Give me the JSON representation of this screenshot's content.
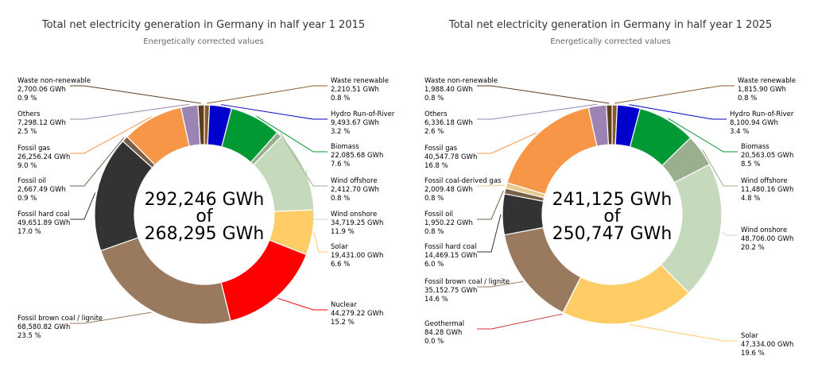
{
  "chart_data": [
    {
      "type": "pie",
      "title": "Total net electricity generation in Germany in half year 1 2015",
      "subtitle": "Energetically corrected values",
      "center_line1": "292,246 GWh",
      "center_line2": "of",
      "center_line3": "268,295 GWh",
      "slices": [
        {
          "name": "Waste renewable",
          "value": 2210.51,
          "value_text": "2,210.51 GWh",
          "percent": "0.8 %",
          "color": "#8b5a2b"
        },
        {
          "name": "Hydro Run-of-River",
          "value": 9493.67,
          "value_text": "9,493.67 GWh",
          "percent": "3.2 %",
          "color": "#0000cc"
        },
        {
          "name": "Biomass",
          "value": 22085.68,
          "value_text": "22,085.68 GWh",
          "percent": "7.6 %",
          "color": "#009933"
        },
        {
          "name": "Wind offshore",
          "value": 2412.7,
          "value_text": "2,412.70 GWh",
          "percent": "0.8 %",
          "color": "#9aaf8e"
        },
        {
          "name": "Wind onshore",
          "value": 34719.25,
          "value_text": "34,719.25 GWh",
          "percent": "11.9 %",
          "color": "#c5dabc"
        },
        {
          "name": "Solar",
          "value": 19431.0,
          "value_text": "19,431.00 GWh",
          "percent": "6.6 %",
          "color": "#ffcc66"
        },
        {
          "name": "Nuclear",
          "value": 44279.22,
          "value_text": "44,279.22 GWh",
          "percent": "15.2 %",
          "color": "#ff0000"
        },
        {
          "name": "Fossil brown coal / lignite",
          "value": 68580.82,
          "value_text": "68,580.82 GWh",
          "percent": "23.5 %",
          "color": "#997a5f"
        },
        {
          "name": "Fossil hard coal",
          "value": 49651.89,
          "value_text": "49,651.89 GWh",
          "percent": "17.0 %",
          "color": "#333333"
        },
        {
          "name": "Fossil oil",
          "value": 2667.49,
          "value_text": "2,667.49 GWh",
          "percent": "0.9 %",
          "color": "#7a6048"
        },
        {
          "name": "Fossil gas",
          "value": 26256.24,
          "value_text": "26,256.24 GWh",
          "percent": "9.0 %",
          "color": "#f79646"
        },
        {
          "name": "Others",
          "value": 7298.12,
          "value_text": "7,298.12 GWh",
          "percent": "2.5 %",
          "color": "#9b84b4"
        },
        {
          "name": "Waste non-renewable",
          "value": 2700.06,
          "value_text": "2,700.06 GWh",
          "percent": "0.9 %",
          "color": "#5c3d1e"
        }
      ]
    },
    {
      "type": "pie",
      "title": "Total net electricity generation in Germany in half year 1 2025",
      "subtitle": "Energetically corrected values",
      "center_line1": "241,125 GWh",
      "center_line2": "of",
      "center_line3": "250,747 GWh",
      "slices": [
        {
          "name": "Waste renewable",
          "value": 1815.9,
          "value_text": "1,815.90 GWh",
          "percent": "0.8 %",
          "color": "#8b5a2b"
        },
        {
          "name": "Hydro Run-of-River",
          "value": 8100.94,
          "value_text": "8,100.94 GWh",
          "percent": "3.4 %",
          "color": "#0000cc"
        },
        {
          "name": "Biomass",
          "value": 20563.05,
          "value_text": "20,563.05 GWh",
          "percent": "8.5 %",
          "color": "#009933"
        },
        {
          "name": "Wind offshore",
          "value": 11480.16,
          "value_text": "11,480.16 GWh",
          "percent": "4.8 %",
          "color": "#9aaf8e"
        },
        {
          "name": "Wind onshore",
          "value": 48706.0,
          "value_text": "48,706.00 GWh",
          "percent": "20.2 %",
          "color": "#c5dabc"
        },
        {
          "name": "Solar",
          "value": 47334.0,
          "value_text": "47,334.00 GWh",
          "percent": "19.6 %",
          "color": "#ffcc66"
        },
        {
          "name": "Geothermal",
          "value": 84.28,
          "value_text": "84.28 GWh",
          "percent": "0.0 %",
          "color": "#cc3333"
        },
        {
          "name": "Fossil brown coal / lignite",
          "value": 35152.75,
          "value_text": "35,152.75 GWh",
          "percent": "14.6 %",
          "color": "#997a5f"
        },
        {
          "name": "Fossil hard coal",
          "value": 14469.15,
          "value_text": "14,469.15 GWh",
          "percent": "6.0 %",
          "color": "#333333"
        },
        {
          "name": "Fossil oil",
          "value": 1950.22,
          "value_text": "1,950.22 GWh",
          "percent": "0.8 %",
          "color": "#7a6048"
        },
        {
          "name": "Fossil coal-derived gas",
          "value": 2009.48,
          "value_text": "2,009.48 GWh",
          "percent": "0.8 %",
          "color": "#e8c98c"
        },
        {
          "name": "Fossil gas",
          "value": 40547.78,
          "value_text": "40,547.78 GWh",
          "percent": "16.8 %",
          "color": "#f79646"
        },
        {
          "name": "Others",
          "value": 6336.18,
          "value_text": "6,336.18 GWh",
          "percent": "2.6 %",
          "color": "#9b84b4"
        },
        {
          "name": "Waste non-renewable",
          "value": 1988.4,
          "value_text": "1,988.40 GWh",
          "percent": "0.8 %",
          "color": "#5c3d1e"
        }
      ]
    }
  ]
}
